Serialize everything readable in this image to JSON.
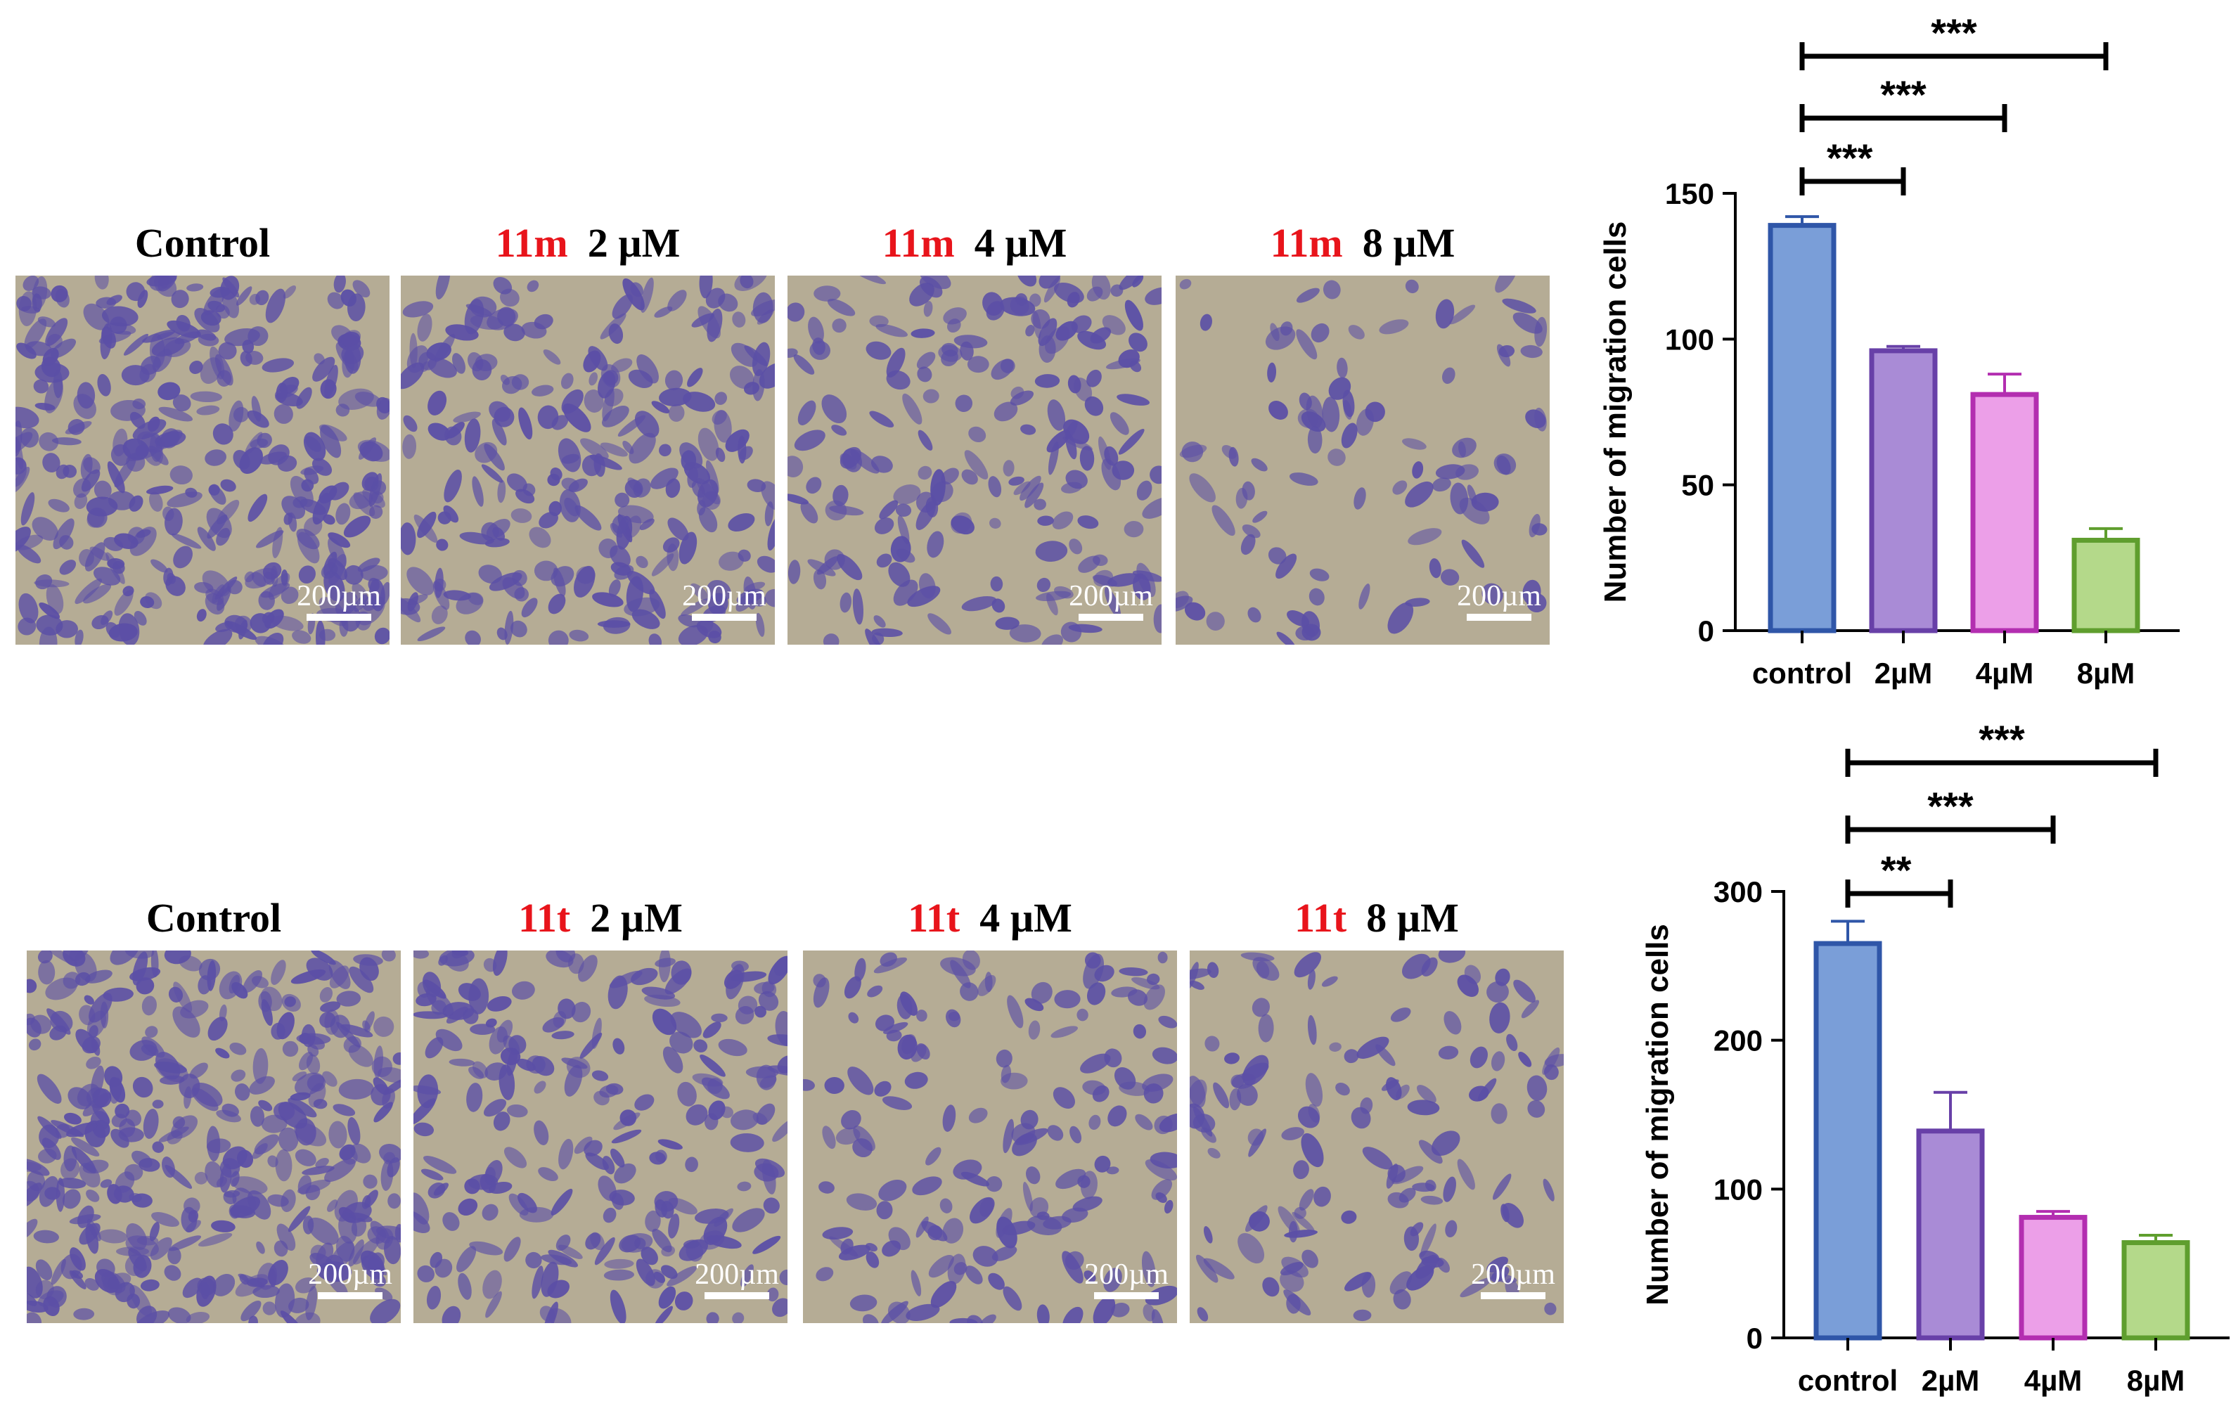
{
  "colors": {
    "compound": "#e8141b",
    "text": "#000000",
    "background_tile": "#b5ac95",
    "cell_stain": "#5b4fa6",
    "scale_bar": "#ffffff",
    "bar_fills": [
      "#7a9ed8",
      "#a98bd6",
      "#ec9fe8",
      "#b4d98a"
    ],
    "bar_strokes": [
      "#2f56a8",
      "#6840a8",
      "#b32eb0",
      "#5f9e2e"
    ]
  },
  "micrograph_rows": [
    {
      "panels": [
        {
          "compound": "",
          "dose": "Control",
          "scale": "200µm",
          "density": 0.9
        },
        {
          "compound": "11m",
          "dose": "2 µM",
          "scale": "200µm",
          "density": 0.65
        },
        {
          "compound": "11m",
          "dose": "4 µM",
          "scale": "200µm",
          "density": 0.5
        },
        {
          "compound": "11m",
          "dose": "8 µM",
          "scale": "200µm",
          "density": 0.25
        }
      ]
    },
    {
      "panels": [
        {
          "compound": "",
          "dose": "Control",
          "scale": "200µm",
          "density": 0.95
        },
        {
          "compound": "11t",
          "dose": "2 µM",
          "scale": "200µm",
          "density": 0.6
        },
        {
          "compound": "11t",
          "dose": "4 µM",
          "scale": "200µm",
          "density": 0.42
        },
        {
          "compound": "11t",
          "dose": "8 µM",
          "scale": "200µm",
          "density": 0.35
        }
      ]
    }
  ],
  "chart_data": [
    {
      "type": "bar",
      "categories": [
        "control",
        "2µM",
        "4µM",
        "8µM"
      ],
      "values": [
        139,
        96,
        81,
        31
      ],
      "errors": [
        3,
        1.5,
        7,
        4
      ],
      "ylabel": "Number of migration cells",
      "ylim": [
        0,
        150
      ],
      "yticks": [
        0,
        50,
        100,
        150
      ],
      "significance": [
        {
          "from": "control",
          "to": "2µM",
          "label": "***"
        },
        {
          "from": "control",
          "to": "4µM",
          "label": "***"
        },
        {
          "from": "control",
          "to": "8µM",
          "label": "***"
        }
      ]
    },
    {
      "type": "bar",
      "categories": [
        "control",
        "2µM",
        "4µM",
        "8µM"
      ],
      "values": [
        265,
        139,
        81,
        64
      ],
      "errors": [
        15,
        26,
        4,
        5
      ],
      "ylabel": "Number of migration cells",
      "ylim": [
        0,
        300
      ],
      "yticks": [
        0,
        100,
        200,
        300
      ],
      "significance": [
        {
          "from": "control",
          "to": "2µM",
          "label": "**"
        },
        {
          "from": "control",
          "to": "4µM",
          "label": "***"
        },
        {
          "from": "control",
          "to": "8µM",
          "label": "***"
        }
      ]
    }
  ]
}
